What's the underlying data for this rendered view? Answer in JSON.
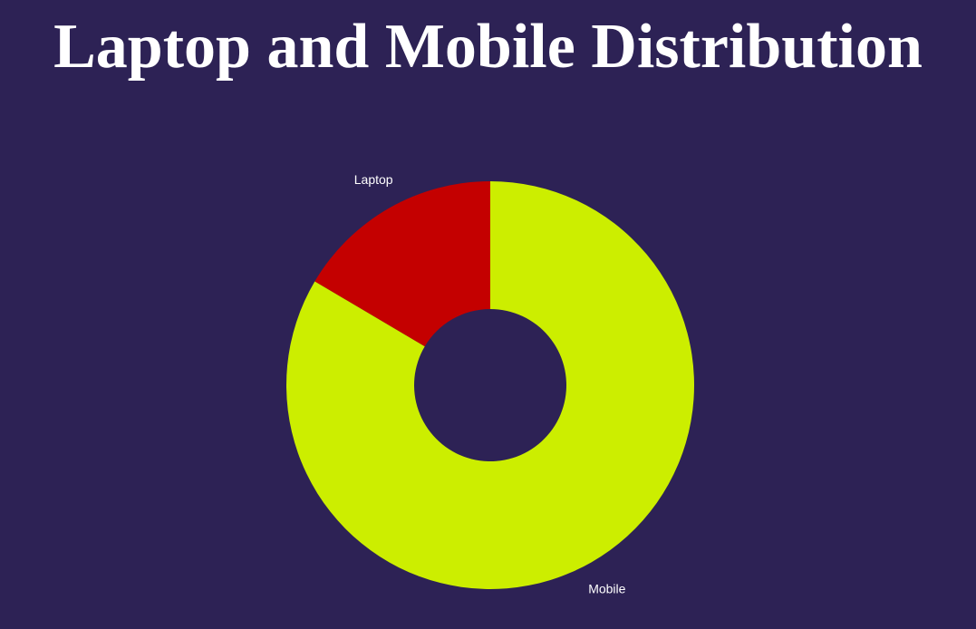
{
  "chart_data": {
    "type": "pie",
    "title": "Laptop and Mobile Distribution",
    "donut": true,
    "categories": [
      "Laptop",
      "Mobile"
    ],
    "values": [
      16.5,
      83.5
    ],
    "colors": [
      "#c40000",
      "#ccee00"
    ],
    "background": "#2d2255",
    "start_angle_deg": 0,
    "direction": "counterclockwise"
  }
}
